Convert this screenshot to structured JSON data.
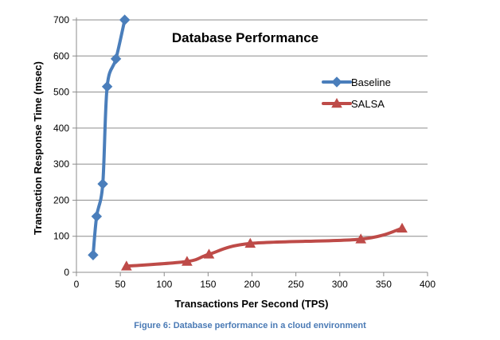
{
  "chart_data": {
    "type": "line",
    "title": "Database Performance",
    "xlabel": "Transactions Per Second (TPS)",
    "ylabel": "Transaction Response Time (msec)",
    "xlim": [
      0,
      400
    ],
    "ylim": [
      0,
      700
    ],
    "x_ticks": [
      "0",
      "50",
      "100",
      "150",
      "200",
      "250",
      "300",
      "350",
      "400"
    ],
    "y_ticks": [
      "0",
      "100",
      "200",
      "300",
      "400",
      "500",
      "600",
      "700"
    ],
    "grid": "horizontal",
    "legend_position": "right",
    "series": [
      {
        "name": "Baseline",
        "color": "#4a7ebb",
        "marker": "diamond",
        "points": [
          [
            19,
            48
          ],
          [
            23,
            155
          ],
          [
            30,
            245
          ],
          [
            35,
            515
          ],
          [
            45,
            592
          ],
          [
            55,
            700
          ]
        ]
      },
      {
        "name": "SALSA",
        "color": "#be4b48",
        "marker": "triangle",
        "points": [
          [
            57,
            17
          ],
          [
            126,
            30
          ],
          [
            151,
            50
          ],
          [
            198,
            80
          ],
          [
            324,
            92
          ],
          [
            371,
            122
          ]
        ]
      }
    ]
  },
  "caption": "Figure 6: Database performance in a cloud environment"
}
